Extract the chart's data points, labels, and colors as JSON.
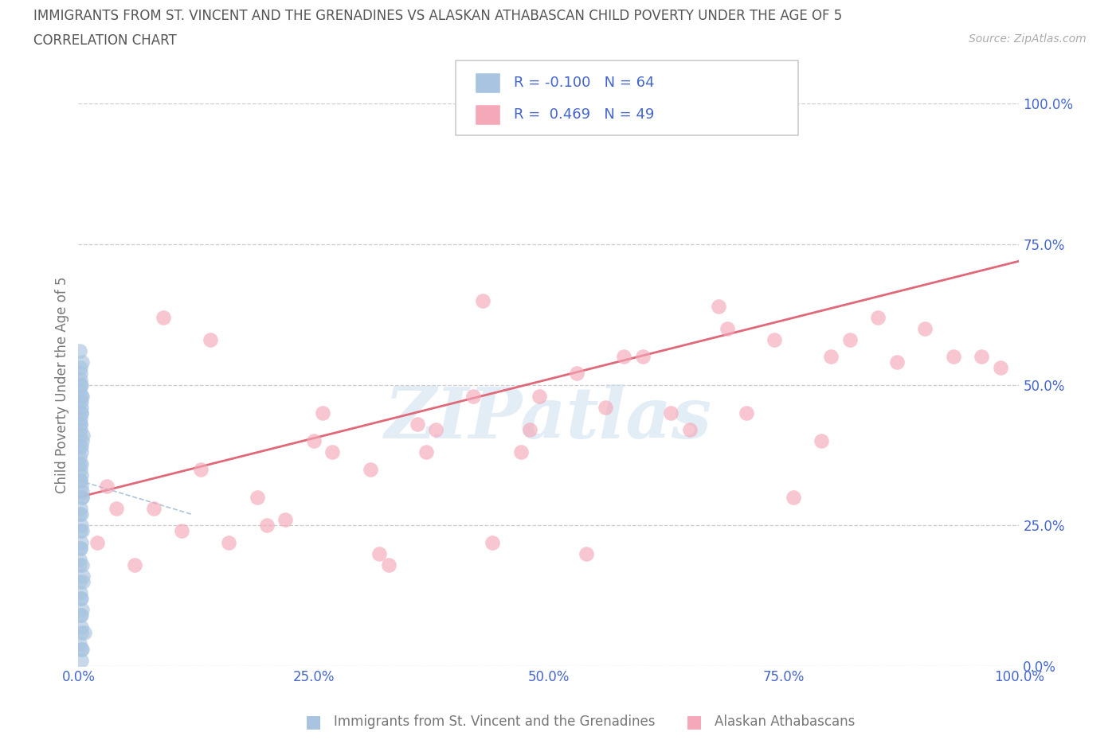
{
  "title_line1": "IMMIGRANTS FROM ST. VINCENT AND THE GRENADINES VS ALASKAN ATHABASCAN CHILD POVERTY UNDER THE AGE OF 5",
  "title_line2": "CORRELATION CHART",
  "source_text": "Source: ZipAtlas.com",
  "ylabel": "Child Poverty Under the Age of 5",
  "legend_label1": "Immigrants from St. Vincent and the Grenadines",
  "legend_label2": "Alaskan Athabascans",
  "r1": -0.1,
  "n1": 64,
  "r2": 0.469,
  "n2": 49,
  "color1": "#a8c4e0",
  "color2": "#f4a8b8",
  "trend_color2": "#e06878",
  "trend_color1": "#b0c4d8",
  "watermark_color": "#cddff0",
  "background_color": "#ffffff",
  "grid_color": "#cccccc",
  "title_color": "#555555",
  "tick_color": "#4466cc",
  "source_color": "#aaaaaa",
  "xmin": 0.0,
  "xmax": 1.0,
  "ymin": 0.0,
  "ymax": 1.0,
  "xticks": [
    0.0,
    0.25,
    0.5,
    0.75,
    1.0
  ],
  "yticks": [
    0.0,
    0.25,
    0.5,
    0.75,
    1.0
  ],
  "xtick_labels": [
    "0.0%",
    "25.0%",
    "50.0%",
    "75.0%",
    "100.0%"
  ],
  "ytick_labels": [
    "0.0%",
    "25.0%",
    "50.0%",
    "75.0%",
    "100.0%"
  ],
  "blue_x": [
    0.002,
    0.004,
    0.001,
    0.003,
    0.002,
    0.005,
    0.003,
    0.001,
    0.002,
    0.004,
    0.003,
    0.004,
    0.002,
    0.001,
    0.005,
    0.002,
    0.003,
    0.006,
    0.004,
    0.003,
    0.002,
    0.001,
    0.003,
    0.002,
    0.004,
    0.001,
    0.003,
    0.004,
    0.002,
    0.003,
    0.003,
    0.001,
    0.005,
    0.002,
    0.004,
    0.003,
    0.001,
    0.004,
    0.002,
    0.003,
    0.003,
    0.002,
    0.001,
    0.003,
    0.002,
    0.004,
    0.001,
    0.002,
    0.002,
    0.004,
    0.001,
    0.003,
    0.002,
    0.003,
    0.003,
    0.001,
    0.002,
    0.003,
    0.003,
    0.002,
    0.001,
    0.003,
    0.002,
    0.003
  ],
  "blue_y": [
    0.5,
    0.48,
    0.47,
    0.45,
    0.43,
    0.41,
    0.39,
    0.36,
    0.33,
    0.3,
    0.27,
    0.24,
    0.21,
    0.18,
    0.15,
    0.12,
    0.09,
    0.06,
    0.03,
    0.01,
    0.52,
    0.49,
    0.46,
    0.43,
    0.4,
    0.37,
    0.34,
    0.31,
    0.28,
    0.25,
    0.22,
    0.19,
    0.16,
    0.13,
    0.1,
    0.07,
    0.04,
    0.54,
    0.51,
    0.48,
    0.45,
    0.42,
    0.39,
    0.36,
    0.33,
    0.3,
    0.27,
    0.24,
    0.21,
    0.18,
    0.15,
    0.12,
    0.09,
    0.06,
    0.03,
    0.56,
    0.53,
    0.5,
    0.47,
    0.44,
    0.41,
    0.38,
    0.35,
    0.32
  ],
  "pink_x": [
    0.03,
    0.08,
    0.13,
    0.19,
    0.25,
    0.31,
    0.36,
    0.42,
    0.47,
    0.53,
    0.58,
    0.63,
    0.69,
    0.74,
    0.8,
    0.85,
    0.9,
    0.96,
    0.02,
    0.06,
    0.11,
    0.16,
    0.22,
    0.27,
    0.33,
    0.38,
    0.44,
    0.49,
    0.54,
    0.6,
    0.65,
    0.71,
    0.76,
    0.82,
    0.87,
    0.93,
    0.98,
    0.04,
    0.09,
    0.14,
    0.2,
    0.26,
    0.32,
    0.37,
    0.43,
    0.48,
    0.56,
    0.68,
    0.79
  ],
  "pink_y": [
    0.32,
    0.28,
    0.35,
    0.3,
    0.4,
    0.35,
    0.43,
    0.48,
    0.38,
    0.52,
    0.55,
    0.45,
    0.6,
    0.58,
    0.55,
    0.62,
    0.6,
    0.55,
    0.22,
    0.18,
    0.24,
    0.22,
    0.26,
    0.38,
    0.18,
    0.42,
    0.22,
    0.48,
    0.2,
    0.55,
    0.42,
    0.45,
    0.3,
    0.58,
    0.54,
    0.55,
    0.53,
    0.28,
    0.62,
    0.58,
    0.25,
    0.45,
    0.2,
    0.38,
    0.65,
    0.42,
    0.46,
    0.64,
    0.4
  ],
  "pink_trend_x0": 0.0,
  "pink_trend_x1": 1.0,
  "pink_trend_y0": 0.3,
  "pink_trend_y1": 0.72,
  "blue_trend_x0": 0.0,
  "blue_trend_x1": 0.12,
  "blue_trend_y0": 0.33,
  "blue_trend_y1": 0.27,
  "scatter_size": 180,
  "scatter_alpha": 0.65
}
